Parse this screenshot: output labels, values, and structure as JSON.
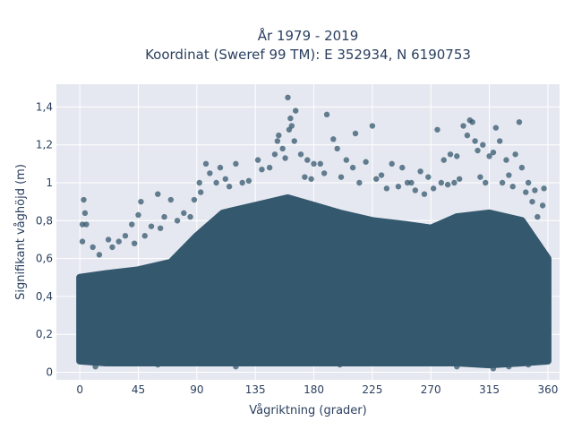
{
  "chart_data": {
    "type": "scatter",
    "title_line1": "År 1979 - 2019",
    "title_line2": "Koordinat (Sweref 99 TM): E 352934, N 6190753",
    "xlabel": "Vågriktning (grader)",
    "ylabel": "Signifikant våghöjd (m)",
    "xlim": [
      -18,
      369
    ],
    "ylim": [
      -0.04,
      1.52
    ],
    "xticks": [
      0,
      45,
      90,
      135,
      180,
      225,
      270,
      315,
      360
    ],
    "xtick_labels": [
      "0",
      "45",
      "90",
      "135",
      "180",
      "225",
      "270",
      "315",
      "360"
    ],
    "yticks": [
      0,
      0.2,
      0.4,
      0.6,
      0.8,
      1.0,
      1.2,
      1.4
    ],
    "ytick_labels": [
      "0",
      "0,2",
      "0,4",
      "0,6",
      "0,8",
      "1",
      "1,2",
      "1,4"
    ],
    "grid": true,
    "marker_color": "#34586e",
    "background_color": "#e5e8f0",
    "density_envelope": {
      "x": [
        0,
        20,
        45,
        70,
        90,
        110,
        135,
        160,
        180,
        200,
        225,
        250,
        270,
        290,
        315,
        340,
        360
      ],
      "y_bottom": [
        0.06,
        0.05,
        0.05,
        0.05,
        0.05,
        0.05,
        0.05,
        0.05,
        0.05,
        0.05,
        0.05,
        0.05,
        0.05,
        0.05,
        0.04,
        0.05,
        0.06
      ],
      "y_top": [
        0.5,
        0.52,
        0.54,
        0.58,
        0.72,
        0.84,
        0.88,
        0.92,
        0.88,
        0.84,
        0.8,
        0.78,
        0.76,
        0.82,
        0.84,
        0.8,
        0.6
      ]
    },
    "points": [
      {
        "x": 3,
        "y": 0.91
      },
      {
        "x": 2,
        "y": 0.78
      },
      {
        "x": 5,
        "y": 0.78
      },
      {
        "x": 4,
        "y": 0.84
      },
      {
        "x": 2,
        "y": 0.69
      },
      {
        "x": 10,
        "y": 0.66
      },
      {
        "x": 22,
        "y": 0.7
      },
      {
        "x": 30,
        "y": 0.69
      },
      {
        "x": 40,
        "y": 0.78
      },
      {
        "x": 45,
        "y": 0.83
      },
      {
        "x": 47,
        "y": 0.9
      },
      {
        "x": 60,
        "y": 0.94
      },
      {
        "x": 70,
        "y": 0.91
      },
      {
        "x": 80,
        "y": 0.84
      },
      {
        "x": 88,
        "y": 0.91
      },
      {
        "x": 93,
        "y": 0.95
      },
      {
        "x": 97,
        "y": 1.1
      },
      {
        "x": 100,
        "y": 1.05
      },
      {
        "x": 108,
        "y": 1.08
      },
      {
        "x": 112,
        "y": 1.02
      },
      {
        "x": 120,
        "y": 1.1
      },
      {
        "x": 130,
        "y": 1.01
      },
      {
        "x": 140,
        "y": 1.07
      },
      {
        "x": 146,
        "y": 1.08
      },
      {
        "x": 150,
        "y": 1.15
      },
      {
        "x": 152,
        "y": 1.22
      },
      {
        "x": 153,
        "y": 1.25
      },
      {
        "x": 156,
        "y": 1.18
      },
      {
        "x": 158,
        "y": 1.13
      },
      {
        "x": 160,
        "y": 1.45
      },
      {
        "x": 161,
        "y": 1.28
      },
      {
        "x": 162,
        "y": 1.34
      },
      {
        "x": 163,
        "y": 1.3
      },
      {
        "x": 165,
        "y": 1.22
      },
      {
        "x": 166,
        "y": 1.38
      },
      {
        "x": 170,
        "y": 1.15
      },
      {
        "x": 175,
        "y": 1.12
      },
      {
        "x": 180,
        "y": 1.1
      },
      {
        "x": 185,
        "y": 1.1
      },
      {
        "x": 190,
        "y": 1.36
      },
      {
        "x": 195,
        "y": 1.23
      },
      {
        "x": 198,
        "y": 1.18
      },
      {
        "x": 205,
        "y": 1.12
      },
      {
        "x": 210,
        "y": 1.08
      },
      {
        "x": 212,
        "y": 1.26
      },
      {
        "x": 220,
        "y": 1.11
      },
      {
        "x": 225,
        "y": 1.3
      },
      {
        "x": 232,
        "y": 1.04
      },
      {
        "x": 240,
        "y": 1.1
      },
      {
        "x": 248,
        "y": 1.08
      },
      {
        "x": 255,
        "y": 1.0
      },
      {
        "x": 262,
        "y": 1.06
      },
      {
        "x": 268,
        "y": 1.03
      },
      {
        "x": 275,
        "y": 1.28
      },
      {
        "x": 280,
        "y": 1.12
      },
      {
        "x": 285,
        "y": 1.15
      },
      {
        "x": 290,
        "y": 1.14
      },
      {
        "x": 295,
        "y": 1.3
      },
      {
        "x": 298,
        "y": 1.25
      },
      {
        "x": 300,
        "y": 1.33
      },
      {
        "x": 302,
        "y": 1.32
      },
      {
        "x": 304,
        "y": 1.22
      },
      {
        "x": 306,
        "y": 1.17
      },
      {
        "x": 310,
        "y": 1.2
      },
      {
        "x": 315,
        "y": 1.14
      },
      {
        "x": 318,
        "y": 1.16
      },
      {
        "x": 320,
        "y": 1.29
      },
      {
        "x": 323,
        "y": 1.22
      },
      {
        "x": 328,
        "y": 1.12
      },
      {
        "x": 330,
        "y": 1.04
      },
      {
        "x": 335,
        "y": 1.15
      },
      {
        "x": 338,
        "y": 1.32
      },
      {
        "x": 340,
        "y": 1.08
      },
      {
        "x": 345,
        "y": 1.0
      },
      {
        "x": 350,
        "y": 0.96
      },
      {
        "x": 357,
        "y": 0.97
      },
      {
        "x": 356,
        "y": 0.88
      },
      {
        "x": 352,
        "y": 0.82
      },
      {
        "x": 348,
        "y": 0.9
      },
      {
        "x": 137,
        "y": 1.12
      },
      {
        "x": 125,
        "y": 1.0
      },
      {
        "x": 115,
        "y": 0.98
      },
      {
        "x": 105,
        "y": 1.0
      },
      {
        "x": 92,
        "y": 1.0
      },
      {
        "x": 173,
        "y": 1.03
      },
      {
        "x": 178,
        "y": 1.02
      },
      {
        "x": 188,
        "y": 1.05
      },
      {
        "x": 201,
        "y": 1.03
      },
      {
        "x": 215,
        "y": 1.0
      },
      {
        "x": 228,
        "y": 1.02
      },
      {
        "x": 236,
        "y": 0.97
      },
      {
        "x": 245,
        "y": 0.98
      },
      {
        "x": 252,
        "y": 1.0
      },
      {
        "x": 258,
        "y": 0.96
      },
      {
        "x": 265,
        "y": 0.94
      },
      {
        "x": 272,
        "y": 0.97
      },
      {
        "x": 278,
        "y": 1.0
      },
      {
        "x": 283,
        "y": 0.99
      },
      {
        "x": 288,
        "y": 1.0
      },
      {
        "x": 292,
        "y": 1.02
      },
      {
        "x": 308,
        "y": 1.03
      },
      {
        "x": 312,
        "y": 1.0
      },
      {
        "x": 325,
        "y": 1.0
      },
      {
        "x": 333,
        "y": 0.98
      },
      {
        "x": 343,
        "y": 0.95
      },
      {
        "x": 55,
        "y": 0.77
      },
      {
        "x": 65,
        "y": 0.82
      },
      {
        "x": 75,
        "y": 0.8
      },
      {
        "x": 85,
        "y": 0.82
      },
      {
        "x": 35,
        "y": 0.72
      },
      {
        "x": 25,
        "y": 0.66
      },
      {
        "x": 15,
        "y": 0.62
      },
      {
        "x": 62,
        "y": 0.76
      },
      {
        "x": 50,
        "y": 0.72
      },
      {
        "x": 42,
        "y": 0.68
      },
      {
        "x": 12,
        "y": 0.03
      },
      {
        "x": 60,
        "y": 0.04
      },
      {
        "x": 120,
        "y": 0.03
      },
      {
        "x": 200,
        "y": 0.04
      },
      {
        "x": 290,
        "y": 0.03
      },
      {
        "x": 318,
        "y": 0.02
      },
      {
        "x": 330,
        "y": 0.03
      },
      {
        "x": 345,
        "y": 0.04
      }
    ]
  }
}
